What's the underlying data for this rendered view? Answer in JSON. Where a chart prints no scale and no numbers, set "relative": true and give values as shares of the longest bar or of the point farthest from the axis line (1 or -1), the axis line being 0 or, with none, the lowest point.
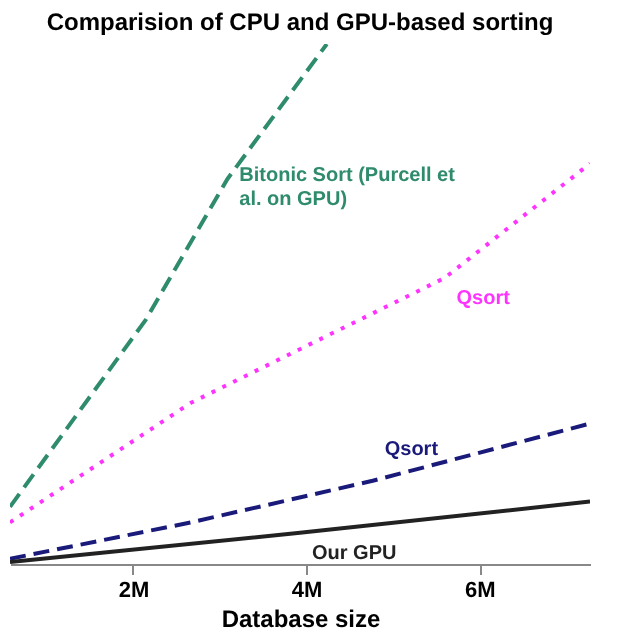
{
  "chart_data": {
    "type": "line",
    "title": "Comparision of CPU and GPU-based sorting",
    "xlabel": "Database size",
    "relative": true,
    "legend": false,
    "grid": false,
    "xlim": [
      0.58,
      7.28
    ],
    "xticks": [
      {
        "value": 2,
        "label": "2M"
      },
      {
        "value": 4,
        "label": "4M"
      },
      {
        "value": 6,
        "label": "6M"
      }
    ],
    "series": [
      {
        "name": "Bitonic Sort (Purcell et al. on GPU)",
        "color": "#2e8b6b",
        "line_style": "dashed",
        "x": [
          0.58,
          2.15,
          3.09,
          4.24
        ],
        "values": [
          0.11,
          0.47,
          0.74,
          1.0
        ]
      },
      {
        "name": "Qsort",
        "color": "#ff33ff",
        "line_style": "dotted",
        "x": [
          0.58,
          2.67,
          5.6,
          7.28
        ],
        "values": [
          0.08,
          0.31,
          0.55,
          0.77
        ]
      },
      {
        "name": "Qsort",
        "color": "#1a1a7a",
        "line_style": "dashed",
        "x": [
          0.58,
          2.67,
          4.77,
          7.28
        ],
        "values": [
          0.01,
          0.08,
          0.16,
          0.27
        ]
      },
      {
        "name": "Our GPU",
        "color": "#222222",
        "line_style": "solid",
        "x": [
          0.58,
          3.93,
          7.28
        ],
        "values": [
          0.004,
          0.06,
          0.12
        ]
      }
    ]
  }
}
